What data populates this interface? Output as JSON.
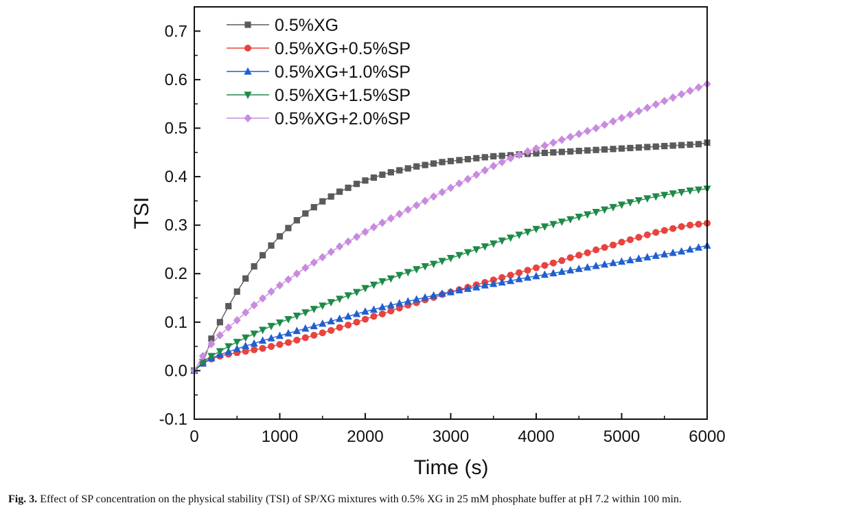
{
  "chart_data": {
    "type": "line",
    "title": "",
    "xlabel": "Time (s)",
    "ylabel": "TSI",
    "xlim": [
      0,
      6000
    ],
    "ylim": [
      -0.1,
      0.75
    ],
    "xticks": [
      0,
      1000,
      2000,
      3000,
      4000,
      5000,
      6000
    ],
    "yticks": [
      -0.1,
      0.0,
      0.1,
      0.2,
      0.3,
      0.4,
      0.5,
      0.6,
      0.7
    ],
    "ytick_labels": [
      "-0.1",
      "0.0",
      "0.1",
      "0.2",
      "0.3",
      "0.4",
      "0.5",
      "0.6",
      "0.7"
    ],
    "grid": false,
    "legend_position": "top-left",
    "x": [
      0,
      100,
      200,
      300,
      400,
      500,
      600,
      700,
      800,
      900,
      1000,
      1100,
      1200,
      1300,
      1400,
      1500,
      1600,
      1700,
      1800,
      1900,
      2000,
      2100,
      2200,
      2300,
      2400,
      2500,
      2600,
      2700,
      2800,
      2900,
      3000,
      3100,
      3200,
      3300,
      3400,
      3500,
      3600,
      3700,
      3800,
      3900,
      4000,
      4100,
      4200,
      4300,
      4400,
      4500,
      4600,
      4700,
      4800,
      4900,
      5000,
      5100,
      5200,
      5300,
      5400,
      5500,
      5600,
      5700,
      5800,
      5900,
      6000
    ],
    "series": [
      {
        "name": "0.5%XG",
        "marker": "square",
        "color": "#5a5a5a",
        "values": [
          0.0,
          0.015,
          0.066,
          0.1,
          0.133,
          0.163,
          0.19,
          0.215,
          0.238,
          0.258,
          0.277,
          0.294,
          0.31,
          0.324,
          0.337,
          0.349,
          0.359,
          0.369,
          0.377,
          0.385,
          0.392,
          0.398,
          0.404,
          0.409,
          0.413,
          0.417,
          0.421,
          0.424,
          0.427,
          0.43,
          0.432,
          0.434,
          0.436,
          0.438,
          0.44,
          0.442,
          0.443,
          0.444,
          0.446,
          0.447,
          0.448,
          0.449,
          0.45,
          0.451,
          0.452,
          0.453,
          0.454,
          0.455,
          0.456,
          0.457,
          0.458,
          0.459,
          0.46,
          0.461,
          0.462,
          0.463,
          0.464,
          0.465,
          0.466,
          0.467,
          0.47
        ]
      },
      {
        "name": "0.5%XG+0.5%SP",
        "marker": "circle",
        "color": "#e8433e",
        "values": [
          0.0,
          0.015,
          0.024,
          0.03,
          0.034,
          0.037,
          0.04,
          0.043,
          0.046,
          0.05,
          0.054,
          0.058,
          0.063,
          0.068,
          0.073,
          0.078,
          0.083,
          0.089,
          0.094,
          0.1,
          0.106,
          0.112,
          0.117,
          0.123,
          0.129,
          0.135,
          0.14,
          0.146,
          0.151,
          0.157,
          0.162,
          0.167,
          0.172,
          0.177,
          0.182,
          0.187,
          0.192,
          0.197,
          0.202,
          0.207,
          0.212,
          0.217,
          0.222,
          0.227,
          0.233,
          0.238,
          0.243,
          0.249,
          0.254,
          0.259,
          0.265,
          0.27,
          0.275,
          0.28,
          0.285,
          0.289,
          0.293,
          0.297,
          0.3,
          0.302,
          0.304
        ]
      },
      {
        "name": "0.5%XG+1.0%SP",
        "marker": "triangle-up",
        "color": "#1f5fd0",
        "values": [
          0.0,
          0.015,
          0.026,
          0.033,
          0.039,
          0.045,
          0.051,
          0.056,
          0.062,
          0.067,
          0.072,
          0.077,
          0.082,
          0.087,
          0.092,
          0.097,
          0.102,
          0.107,
          0.112,
          0.117,
          0.122,
          0.126,
          0.131,
          0.135,
          0.139,
          0.143,
          0.147,
          0.151,
          0.155,
          0.159,
          0.162,
          0.166,
          0.169,
          0.172,
          0.176,
          0.179,
          0.182,
          0.185,
          0.189,
          0.192,
          0.195,
          0.198,
          0.201,
          0.204,
          0.207,
          0.21,
          0.213,
          0.216,
          0.219,
          0.222,
          0.225,
          0.228,
          0.231,
          0.234,
          0.237,
          0.24,
          0.243,
          0.246,
          0.25,
          0.254,
          0.258
        ]
      },
      {
        "name": "0.5%XG+1.5%SP",
        "marker": "triangle-down",
        "color": "#1e8a48",
        "values": [
          0.0,
          0.018,
          0.03,
          0.04,
          0.05,
          0.059,
          0.068,
          0.076,
          0.084,
          0.092,
          0.099,
          0.106,
          0.113,
          0.12,
          0.127,
          0.134,
          0.141,
          0.148,
          0.155,
          0.162,
          0.17,
          0.177,
          0.184,
          0.19,
          0.197,
          0.203,
          0.209,
          0.215,
          0.22,
          0.226,
          0.232,
          0.238,
          0.244,
          0.25,
          0.256,
          0.262,
          0.268,
          0.274,
          0.28,
          0.286,
          0.292,
          0.297,
          0.302,
          0.307,
          0.312,
          0.317,
          0.322,
          0.327,
          0.332,
          0.337,
          0.342,
          0.347,
          0.351,
          0.355,
          0.359,
          0.362,
          0.365,
          0.368,
          0.371,
          0.373,
          0.375
        ]
      },
      {
        "name": "0.5%XG+2.0%SP",
        "marker": "diamond",
        "color": "#c88be0",
        "values": [
          0.0,
          0.03,
          0.055,
          0.073,
          0.089,
          0.104,
          0.12,
          0.135,
          0.149,
          0.163,
          0.176,
          0.188,
          0.2,
          0.212,
          0.223,
          0.234,
          0.245,
          0.256,
          0.266,
          0.276,
          0.286,
          0.296,
          0.305,
          0.314,
          0.323,
          0.332,
          0.341,
          0.35,
          0.359,
          0.368,
          0.377,
          0.386,
          0.395,
          0.404,
          0.413,
          0.422,
          0.43,
          0.438,
          0.445,
          0.452,
          0.458,
          0.464,
          0.47,
          0.476,
          0.482,
          0.488,
          0.494,
          0.5,
          0.507,
          0.514,
          0.521,
          0.528,
          0.535,
          0.542,
          0.549,
          0.556,
          0.563,
          0.57,
          0.577,
          0.584,
          0.591
        ]
      }
    ]
  },
  "caption": {
    "label": "Fig. 3.",
    "text": "Effect of SP concentration on the physical stability (TSI) of SP/XG mixtures with 0.5% XG in 25 mM phosphate buffer at pH 7.2 within 100 min."
  }
}
